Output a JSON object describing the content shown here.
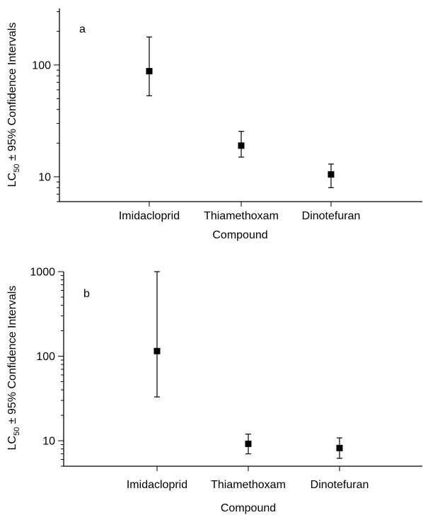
{
  "chart_data": [
    {
      "type": "scatter",
      "panel_label": "a",
      "categories": [
        "Imidacloprid",
        "Thiamethoxam",
        "Dinotefuran"
      ],
      "series": [
        {
          "values": [
            88,
            19,
            10.5
          ],
          "ci_low": [
            53,
            15,
            8
          ],
          "ci_high": [
            178,
            25.5,
            13
          ]
        }
      ],
      "xlabel": "Compound",
      "ylabel_prefix": "LC",
      "ylabel_subscript": "50",
      "ylabel_suffix": " ± 95% Confidence Intervals",
      "yscale": "log",
      "ylim": [
        6,
        320
      ],
      "yticks": [
        10,
        100
      ],
      "ytick_labels": [
        "10",
        "100"
      ],
      "grid": false,
      "legend": "none"
    },
    {
      "type": "scatter",
      "panel_label": "b",
      "categories": [
        "Imidacloprid",
        "Thiamethoxam",
        "Dinotefuran"
      ],
      "series": [
        {
          "values": [
            115,
            9.2,
            8.2
          ],
          "ci_low": [
            33,
            7,
            6.2
          ],
          "ci_high": [
            1000,
            12,
            10.8
          ]
        }
      ],
      "xlabel": "Compound",
      "ylabel_prefix": "LC",
      "ylabel_subscript": "50",
      "ylabel_suffix": " ± 95% Confidence Intervals",
      "yscale": "log",
      "ylim": [
        5,
        1000
      ],
      "yticks": [
        10,
        100,
        1000
      ],
      "ytick_labels": [
        "10",
        "100",
        "1000"
      ],
      "grid": false,
      "legend": "none"
    }
  ]
}
